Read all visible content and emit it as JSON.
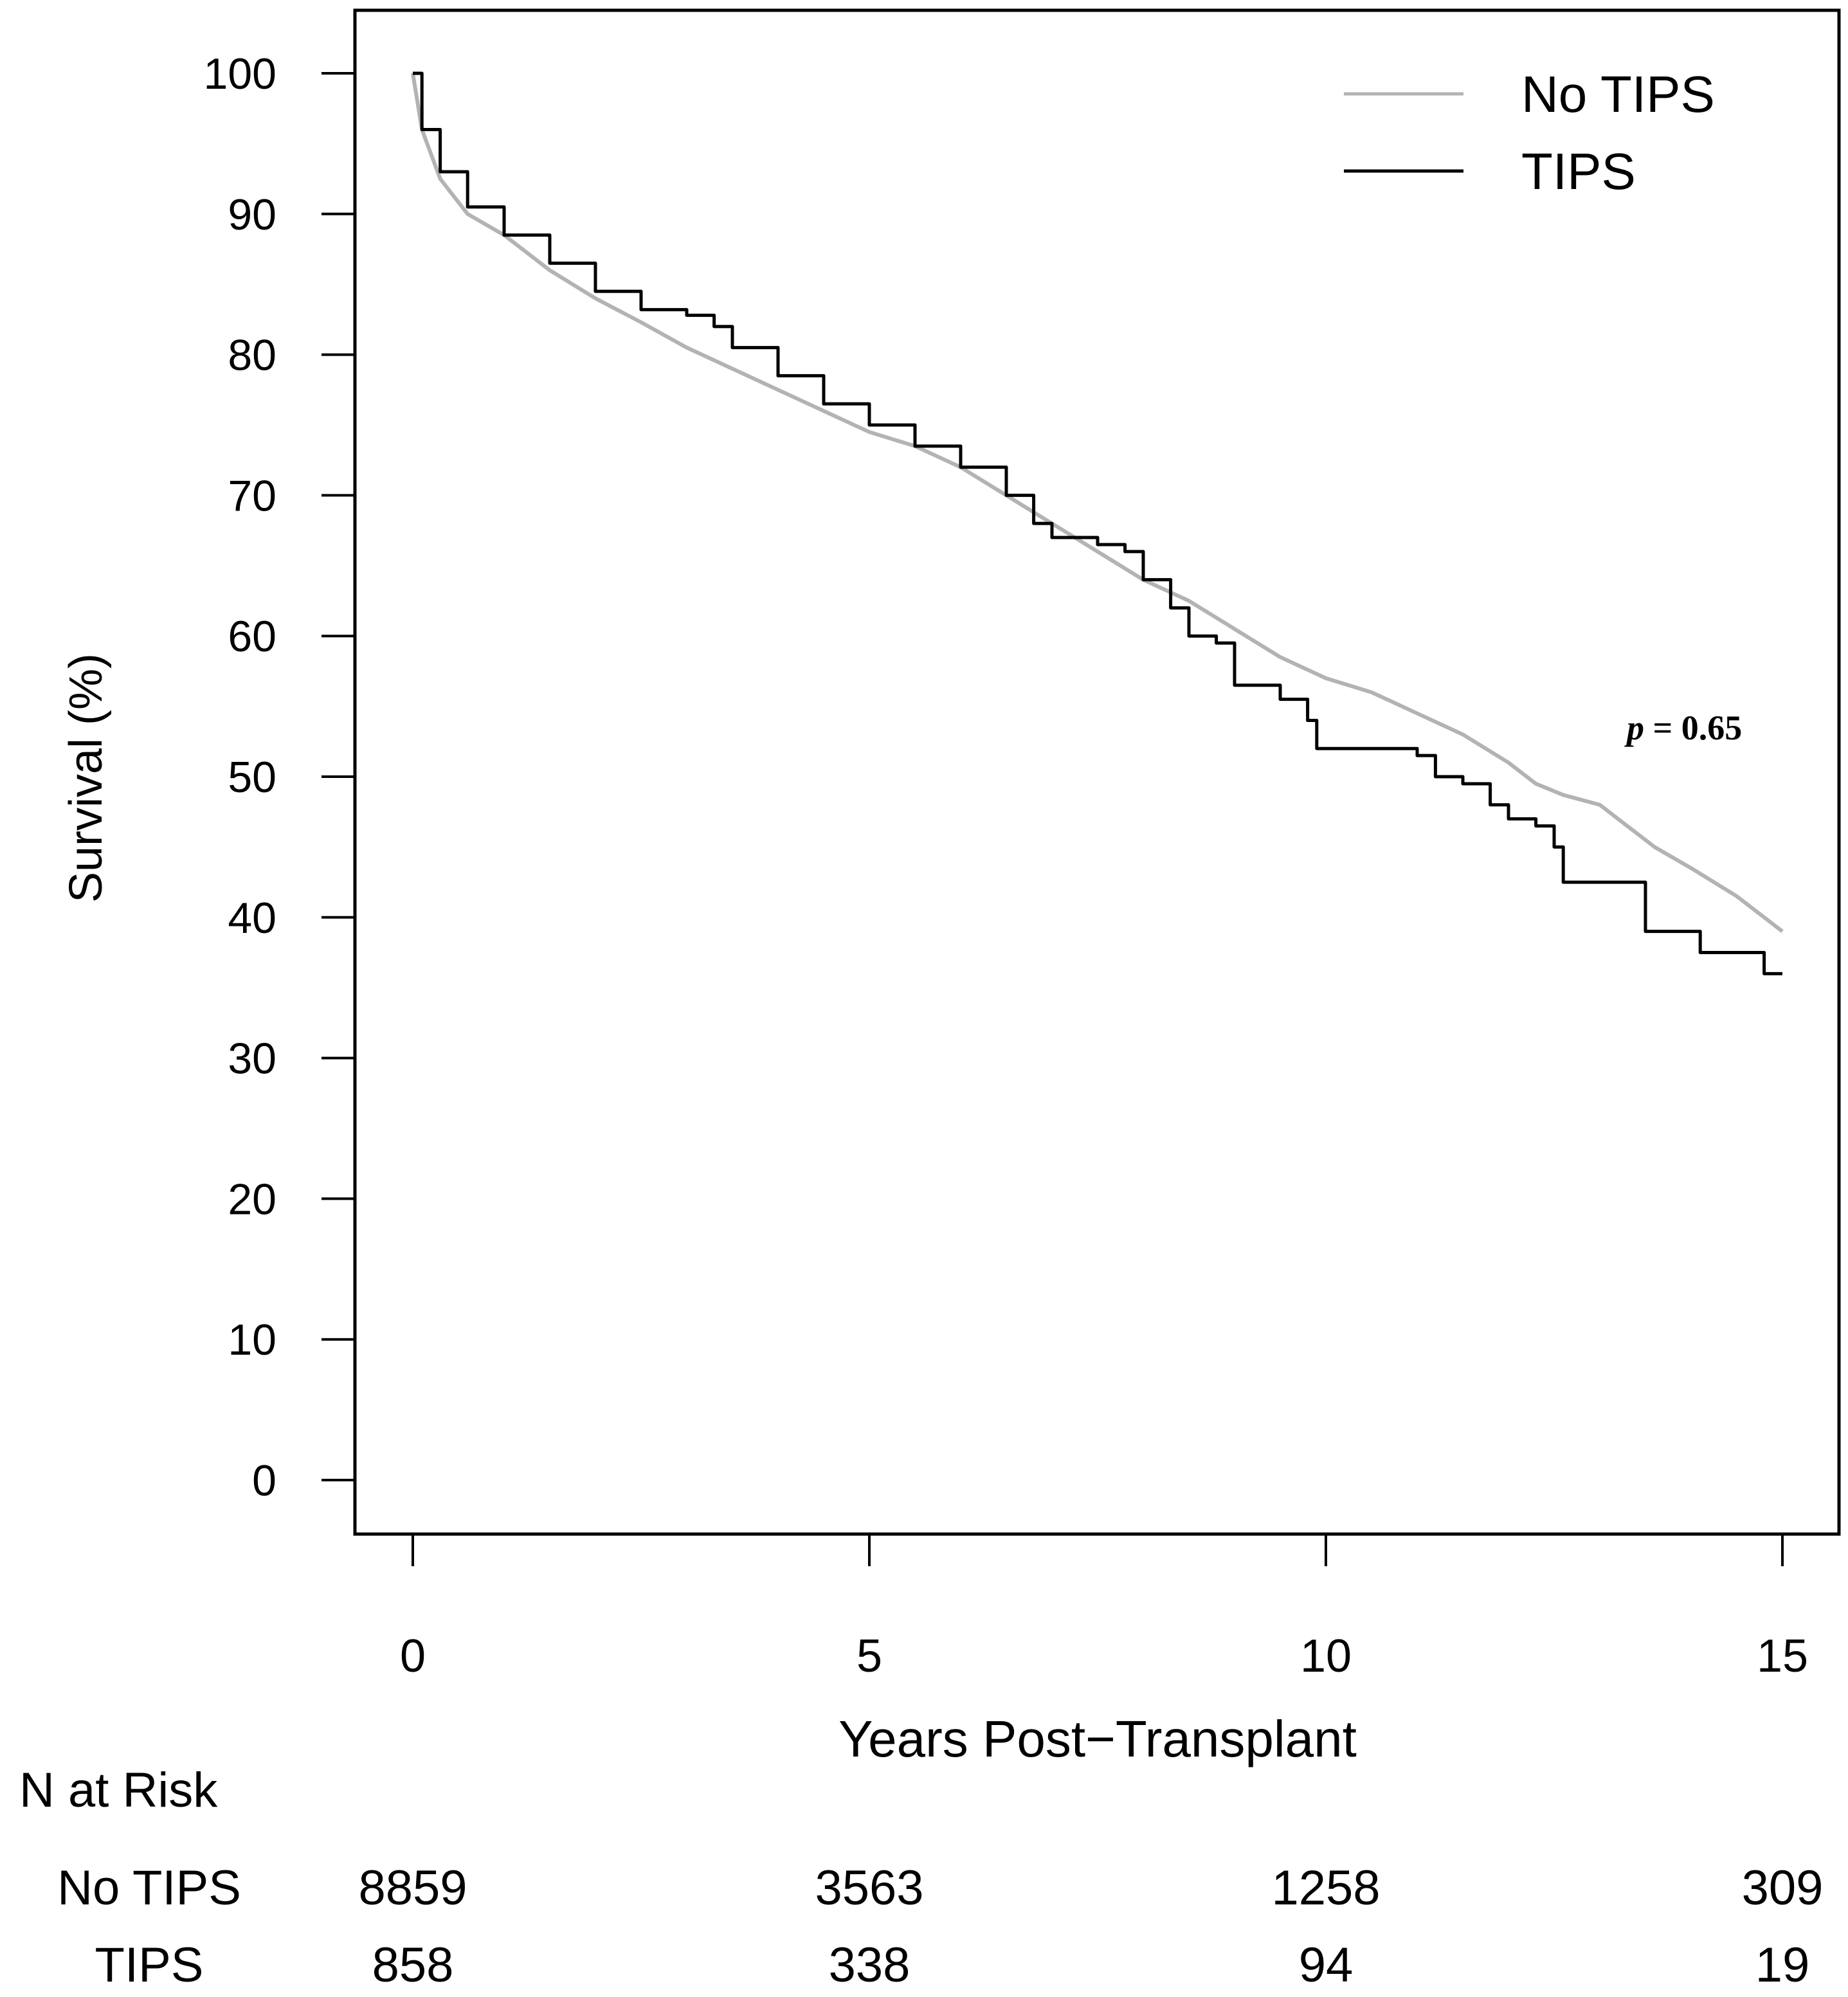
{
  "chart_data": {
    "type": "line",
    "subtype": "kaplan-meier step",
    "xlabel": "Years Post−Transplant",
    "ylabel": "Survival (%)",
    "xlim": [
      0,
      15
    ],
    "ylim": [
      0,
      100
    ],
    "x_ticks": [
      0,
      5,
      10,
      15
    ],
    "y_ticks": [
      0,
      10,
      20,
      30,
      40,
      50,
      60,
      70,
      80,
      90,
      100
    ],
    "grid": false,
    "legend_position": "top-right",
    "annotation": {
      "italic": "p",
      "rest": " = 0.65"
    },
    "series": [
      {
        "name": "No TIPS",
        "color": "#b3b3b3",
        "points": [
          [
            0,
            100
          ],
          [
            0.1,
            96
          ],
          [
            0.3,
            92.5
          ],
          [
            0.6,
            90
          ],
          [
            1,
            88.5
          ],
          [
            1.5,
            86
          ],
          [
            2,
            84
          ],
          [
            2.5,
            82.3
          ],
          [
            3,
            80.5
          ],
          [
            3.5,
            79
          ],
          [
            4,
            77.5
          ],
          [
            4.5,
            76
          ],
          [
            5,
            74.5
          ],
          [
            5.5,
            73.5
          ],
          [
            6,
            72
          ],
          [
            6.5,
            70
          ],
          [
            7,
            68
          ],
          [
            7.5,
            66
          ],
          [
            8,
            64
          ],
          [
            8.5,
            62.5
          ],
          [
            9,
            60.5
          ],
          [
            9.5,
            58.5
          ],
          [
            10,
            57
          ],
          [
            10.5,
            56
          ],
          [
            11,
            54.5
          ],
          [
            11.5,
            53
          ],
          [
            12,
            51
          ],
          [
            12.3,
            49.5
          ],
          [
            12.6,
            48.7
          ],
          [
            13,
            48
          ],
          [
            13.3,
            46.5
          ],
          [
            13.6,
            45
          ],
          [
            14,
            43.5
          ],
          [
            14.5,
            41.5
          ],
          [
            15,
            39
          ]
        ]
      },
      {
        "name": "TIPS",
        "color": "#000000",
        "points": [
          [
            0,
            100
          ],
          [
            0.1,
            96
          ],
          [
            0.3,
            93
          ],
          [
            0.6,
            90.5
          ],
          [
            1,
            88.5
          ],
          [
            1.5,
            86.5
          ],
          [
            2,
            84.5
          ],
          [
            2.5,
            83.2
          ],
          [
            3,
            82.8
          ],
          [
            3.3,
            82
          ],
          [
            3.5,
            80.5
          ],
          [
            4,
            78.5
          ],
          [
            4.5,
            76.5
          ],
          [
            5,
            75
          ],
          [
            5.5,
            73.5
          ],
          [
            6,
            72
          ],
          [
            6.5,
            70
          ],
          [
            6.8,
            68
          ],
          [
            7,
            67
          ],
          [
            7.5,
            66.5
          ],
          [
            7.8,
            66
          ],
          [
            8,
            64
          ],
          [
            8.3,
            62
          ],
          [
            8.5,
            60
          ],
          [
            8.8,
            59.5
          ],
          [
            9,
            56.5
          ],
          [
            9.5,
            55.5
          ],
          [
            9.8,
            54
          ],
          [
            9.9,
            52
          ],
          [
            10.5,
            52
          ],
          [
            11,
            51.5
          ],
          [
            11.2,
            50
          ],
          [
            11.5,
            49.5
          ],
          [
            11.8,
            48
          ],
          [
            12,
            47
          ],
          [
            12.3,
            46.5
          ],
          [
            12.5,
            45
          ],
          [
            12.6,
            42.5
          ],
          [
            13.4,
            42.5
          ],
          [
            13.5,
            39
          ],
          [
            14,
            39
          ],
          [
            14.1,
            37.5
          ],
          [
            14.7,
            37.5
          ],
          [
            14.8,
            36
          ],
          [
            15,
            36
          ]
        ]
      }
    ],
    "risk_table": {
      "title": "N at Risk",
      "times": [
        0,
        5,
        10,
        15
      ],
      "rows": [
        {
          "label": "No TIPS",
          "values": [
            "8859",
            "3563",
            "1258",
            "309"
          ]
        },
        {
          "label": "TIPS",
          "values": [
            "858",
            "338",
            "94",
            "19"
          ]
        }
      ]
    }
  }
}
